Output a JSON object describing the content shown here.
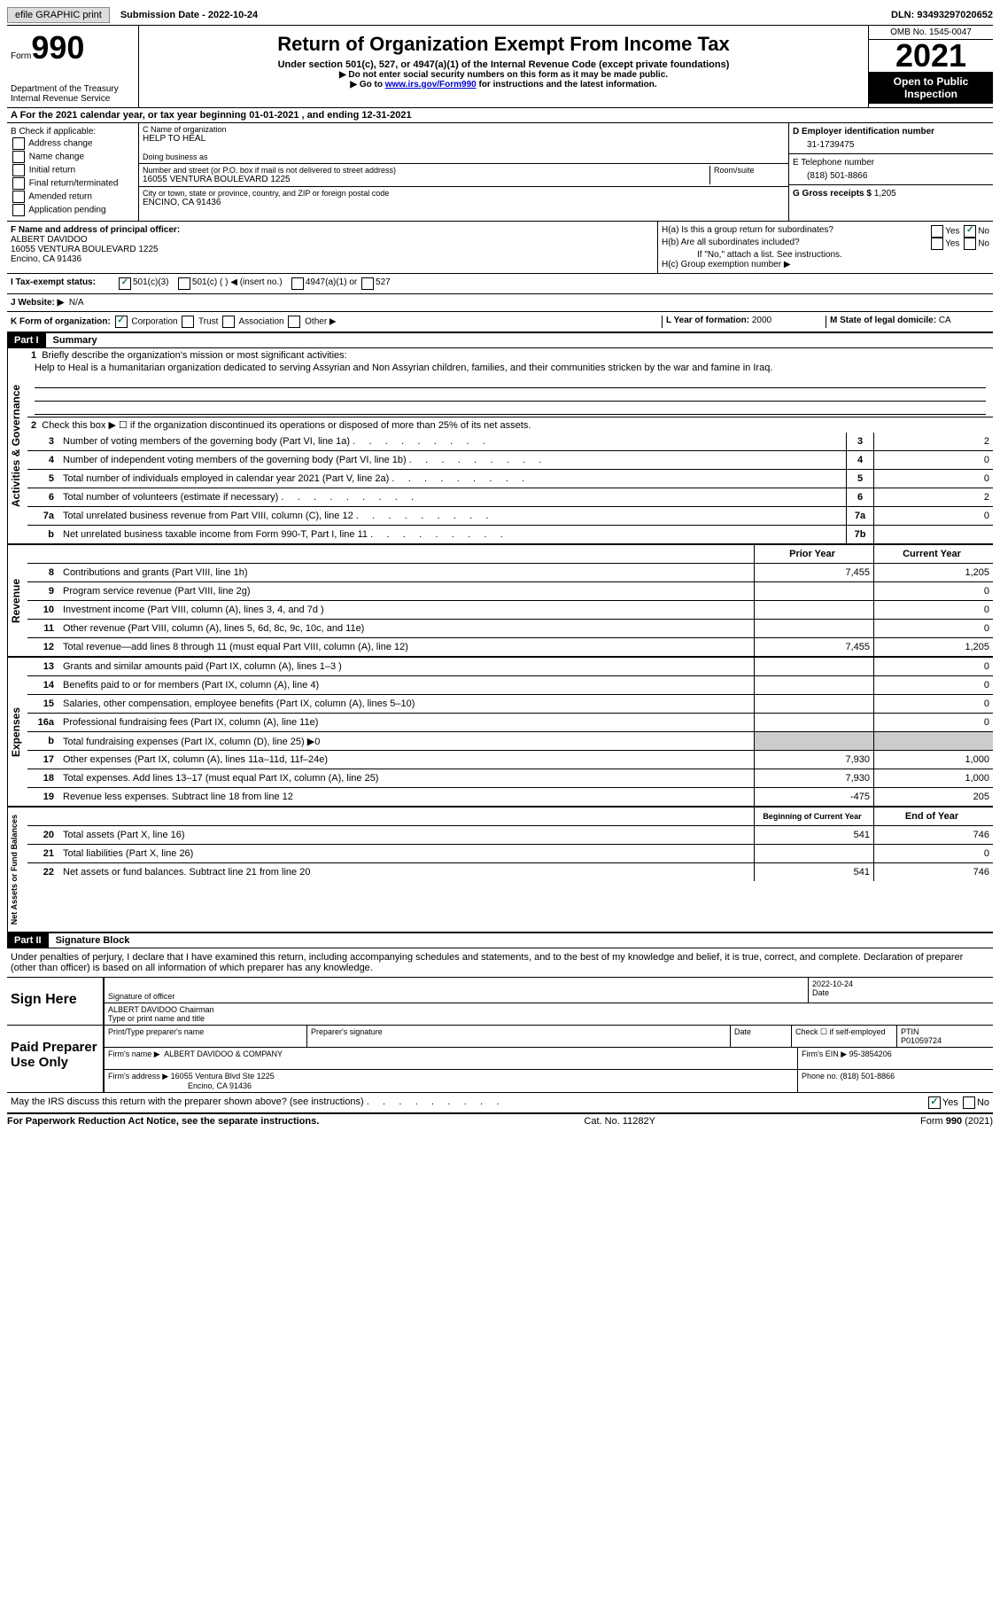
{
  "topbar": {
    "efile": "efile GRAPHIC print",
    "submission": "Submission Date - 2022-10-24",
    "dln": "DLN: 93493297020652"
  },
  "header": {
    "form_label": "Form",
    "form_number": "990",
    "title": "Return of Organization Exempt From Income Tax",
    "subtitle": "Under section 501(c), 527, or 4947(a)(1) of the Internal Revenue Code (except private foundations)",
    "instr1": "▶ Do not enter social security numbers on this form as it may be made public.",
    "instr2_pre": "▶ Go to ",
    "instr2_link": "www.irs.gov/Form990",
    "instr2_post": " for instructions and the latest information.",
    "dept": "Department of the Treasury",
    "irs": "Internal Revenue Service",
    "omb": "OMB No. 1545-0047",
    "year": "2021",
    "open": "Open to Public Inspection"
  },
  "row_a": "A For the 2021 calendar year, or tax year beginning 01-01-2021   , and ending 12-31-2021",
  "col_b": {
    "label": "B Check if applicable:",
    "opts": [
      "Address change",
      "Name change",
      "Initial return",
      "Final return/terminated",
      "Amended return",
      "Application pending"
    ]
  },
  "col_c": {
    "name_label": "C Name of organization",
    "name": "HELP TO HEAL",
    "dba_label": "Doing business as",
    "dba": "",
    "street_label": "Number and street (or P.O. box if mail is not delivered to street address)",
    "street": "16055 VENTURA BOULEVARD 1225",
    "room_label": "Room/suite",
    "city_label": "City or town, state or province, country, and ZIP or foreign postal code",
    "city": "ENCINO, CA  91436"
  },
  "col_d": {
    "ein_label": "D Employer identification number",
    "ein": "31-1739475",
    "phone_label": "E Telephone number",
    "phone": "(818) 501-8866",
    "gross_label": "G Gross receipts $",
    "gross": "1,205"
  },
  "row_f": {
    "label": "F Name and address of principal officer:",
    "name": "ALBERT DAVIDOO",
    "street": "16055 VENTURA BOULEVARD 1225",
    "city": "Encino, CA  91436"
  },
  "row_h": {
    "ha": "H(a)  Is this a group return for subordinates?",
    "hb": "H(b)  Are all subordinates included?",
    "hb_note": "If \"No,\" attach a list. See instructions.",
    "hc": "H(c)  Group exemption number ▶"
  },
  "row_i": {
    "label": "I    Tax-exempt status:",
    "opt1": "501(c)(3)",
    "opt2": "501(c) (  ) ◀ (insert no.)",
    "opt3": "4947(a)(1) or",
    "opt4": "527"
  },
  "row_j": {
    "label": "J   Website: ▶",
    "value": "N/A"
  },
  "row_k": {
    "label": "K Form of organization:",
    "opts": [
      "Corporation",
      "Trust",
      "Association",
      "Other ▶"
    ],
    "l_label": "L Year of formation:",
    "l_val": "2000",
    "m_label": "M State of legal domicile:",
    "m_val": "CA"
  },
  "part1": {
    "header": "Part I",
    "title": "Summary",
    "line1_label": "Briefly describe the organization's mission or most significant activities:",
    "mission": "Help to Heal is a humanitarian organization dedicated to serving Assyrian and Non Assyrian children, families, and their communities stricken by the war and famine in Iraq.",
    "line2": "Check this box ▶ ☐ if the organization discontinued its operations or disposed of more than 25% of its net assets.",
    "lines_gov": [
      {
        "n": "3",
        "t": "Number of voting members of the governing body (Part VI, line 1a)",
        "b": "3",
        "v": "2"
      },
      {
        "n": "4",
        "t": "Number of independent voting members of the governing body (Part VI, line 1b)",
        "b": "4",
        "v": "0"
      },
      {
        "n": "5",
        "t": "Total number of individuals employed in calendar year 2021 (Part V, line 2a)",
        "b": "5",
        "v": "0"
      },
      {
        "n": "6",
        "t": "Total number of volunteers (estimate if necessary)",
        "b": "6",
        "v": "2"
      },
      {
        "n": "7a",
        "t": "Total unrelated business revenue from Part VIII, column (C), line 12",
        "b": "7a",
        "v": "0"
      },
      {
        "n": "b",
        "t": "Net unrelated business taxable income from Form 990-T, Part I, line 11",
        "b": "7b",
        "v": ""
      }
    ],
    "col_prior": "Prior Year",
    "col_current": "Current Year",
    "lines_rev": [
      {
        "n": "8",
        "t": "Contributions and grants (Part VIII, line 1h)",
        "p": "7,455",
        "c": "1,205"
      },
      {
        "n": "9",
        "t": "Program service revenue (Part VIII, line 2g)",
        "p": "",
        "c": "0"
      },
      {
        "n": "10",
        "t": "Investment income (Part VIII, column (A), lines 3, 4, and 7d )",
        "p": "",
        "c": "0"
      },
      {
        "n": "11",
        "t": "Other revenue (Part VIII, column (A), lines 5, 6d, 8c, 9c, 10c, and 11e)",
        "p": "",
        "c": "0"
      },
      {
        "n": "12",
        "t": "Total revenue—add lines 8 through 11 (must equal Part VIII, column (A), line 12)",
        "p": "7,455",
        "c": "1,205"
      }
    ],
    "lines_exp": [
      {
        "n": "13",
        "t": "Grants and similar amounts paid (Part IX, column (A), lines 1–3 )",
        "p": "",
        "c": "0"
      },
      {
        "n": "14",
        "t": "Benefits paid to or for members (Part IX, column (A), line 4)",
        "p": "",
        "c": "0"
      },
      {
        "n": "15",
        "t": "Salaries, other compensation, employee benefits (Part IX, column (A), lines 5–10)",
        "p": "",
        "c": "0"
      },
      {
        "n": "16a",
        "t": "Professional fundraising fees (Part IX, column (A), line 11e)",
        "p": "",
        "c": "0"
      },
      {
        "n": "b",
        "t": "Total fundraising expenses (Part IX, column (D), line 25) ▶0",
        "p": "shaded",
        "c": "shaded"
      },
      {
        "n": "17",
        "t": "Other expenses (Part IX, column (A), lines 11a–11d, 11f–24e)",
        "p": "7,930",
        "c": "1,000"
      },
      {
        "n": "18",
        "t": "Total expenses. Add lines 13–17 (must equal Part IX, column (A), line 25)",
        "p": "7,930",
        "c": "1,000"
      },
      {
        "n": "19",
        "t": "Revenue less expenses. Subtract line 18 from line 12",
        "p": "-475",
        "c": "205"
      }
    ],
    "col_begin": "Beginning of Current Year",
    "col_end": "End of Year",
    "lines_net": [
      {
        "n": "20",
        "t": "Total assets (Part X, line 16)",
        "p": "541",
        "c": "746"
      },
      {
        "n": "21",
        "t": "Total liabilities (Part X, line 26)",
        "p": "",
        "c": "0"
      },
      {
        "n": "22",
        "t": "Net assets or fund balances. Subtract line 21 from line 20",
        "p": "541",
        "c": "746"
      }
    ]
  },
  "part2": {
    "header": "Part II",
    "title": "Signature Block",
    "declaration": "Under penalties of perjury, I declare that I have examined this return, including accompanying schedules and statements, and to the best of my knowledge and belief, it is true, correct, and complete. Declaration of preparer (other than officer) is based on all information of which preparer has any knowledge.",
    "sign_here": "Sign Here",
    "sig_officer": "Signature of officer",
    "sig_date": "2022-10-24",
    "date_label": "Date",
    "officer_name": "ALBERT DAVIDOO  Chairman",
    "type_name": "Type or print name and title",
    "paid_prep": "Paid Preparer Use Only",
    "prep_name_label": "Print/Type preparer's name",
    "prep_sig_label": "Preparer's signature",
    "check_self": "Check ☐ if self-employed",
    "ptin_label": "PTIN",
    "ptin": "P01059724",
    "firm_name_label": "Firm's name    ▶",
    "firm_name": "ALBERT DAVIDOO & COMPANY",
    "firm_ein_label": "Firm's EIN ▶",
    "firm_ein": "95-3854206",
    "firm_addr_label": "Firm's address ▶",
    "firm_addr1": "16055 Ventura Blvd Ste 1225",
    "firm_addr2": "Encino, CA  91436",
    "firm_phone_label": "Phone no.",
    "firm_phone": "(818) 501-8866",
    "discuss": "May the IRS discuss this return with the preparer shown above? (see instructions)"
  },
  "footer": {
    "paperwork": "For Paperwork Reduction Act Notice, see the separate instructions.",
    "cat": "Cat. No. 11282Y",
    "form": "Form 990 (2021)"
  }
}
